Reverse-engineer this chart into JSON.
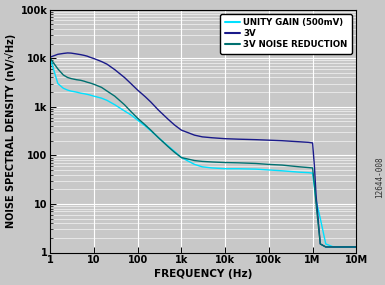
{
  "xlabel": "FREQUENCY (Hz)",
  "ylabel": "NOISE SPECTRAL DENSITY (nV/√Hz)",
  "xlim": [
    1,
    10000000.0
  ],
  "ylim": [
    1,
    100000.0
  ],
  "background_color": "#c8c8c8",
  "plot_bg_color": "#c8c8c8",
  "legend_labels": [
    "UNITY GAIN (500mV)",
    "3V",
    "3V NOISE REDUCTION"
  ],
  "legend_colors": [
    "#00e0ff",
    "#1a1a8a",
    "#007070"
  ],
  "watermark": "12644-008",
  "curves": {
    "unity_gain": {
      "color": "#00e0ff",
      "freq": [
        1,
        1.5,
        2,
        2.5,
        3,
        4,
        5,
        6,
        7,
        8,
        10,
        15,
        20,
        30,
        50,
        70,
        100,
        150,
        200,
        300,
        500,
        700,
        1000,
        2000,
        3000,
        5000,
        7000,
        10000,
        20000,
        50000,
        100000,
        200000,
        500000,
        800000,
        1000000,
        1200000,
        1500000,
        2000000,
        3000000,
        5000000,
        7000000,
        10000000
      ],
      "val": [
        10000,
        3000,
        2400,
        2200,
        2100,
        2000,
        1900,
        1850,
        1800,
        1750,
        1650,
        1500,
        1350,
        1100,
        820,
        680,
        530,
        400,
        320,
        230,
        155,
        120,
        90,
        65,
        58,
        55,
        54,
        53,
        53,
        52,
        50,
        48,
        45,
        44,
        43,
        12,
        5,
        1.5,
        1.3,
        1.3,
        1.3,
        1.3
      ]
    },
    "3v": {
      "color": "#1a1a8a",
      "freq": [
        1,
        1.5,
        2,
        2.5,
        3,
        4,
        5,
        6,
        7,
        8,
        10,
        15,
        20,
        30,
        50,
        70,
        100,
        150,
        200,
        300,
        500,
        700,
        1000,
        2000,
        3000,
        5000,
        7000,
        10000,
        20000,
        50000,
        100000,
        200000,
        500000,
        800000,
        1000000,
        1100000,
        1200000,
        1500000,
        2000000,
        3000000,
        5000000,
        10000000
      ],
      "val": [
        10500,
        12000,
        12500,
        12800,
        12700,
        12200,
        11800,
        11400,
        11000,
        10500,
        9800,
        8500,
        7500,
        5800,
        4000,
        3000,
        2200,
        1600,
        1250,
        850,
        550,
        420,
        330,
        260,
        240,
        230,
        225,
        220,
        215,
        210,
        205,
        200,
        190,
        185,
        180,
        60,
        15,
        1.5,
        1.3,
        1.3,
        1.3,
        1.3
      ]
    },
    "3v_nr": {
      "color": "#007070",
      "freq": [
        1,
        1.5,
        2,
        2.5,
        3,
        4,
        5,
        6,
        7,
        8,
        10,
        15,
        20,
        30,
        50,
        70,
        100,
        150,
        200,
        300,
        500,
        700,
        1000,
        2000,
        3000,
        5000,
        7000,
        10000,
        20000,
        50000,
        100000,
        200000,
        500000,
        800000,
        1000000,
        1100000,
        1200000,
        1500000,
        2000000,
        3000000,
        5000000,
        10000000
      ],
      "val": [
        10000,
        6000,
        4500,
        4000,
        3800,
        3600,
        3500,
        3350,
        3200,
        3100,
        2900,
        2500,
        2100,
        1650,
        1100,
        800,
        580,
        420,
        330,
        230,
        150,
        115,
        90,
        78,
        75,
        73,
        72,
        71,
        70,
        68,
        65,
        63,
        58,
        56,
        55,
        25,
        10,
        1.5,
        1.3,
        1.3,
        1.3,
        1.3
      ]
    }
  }
}
